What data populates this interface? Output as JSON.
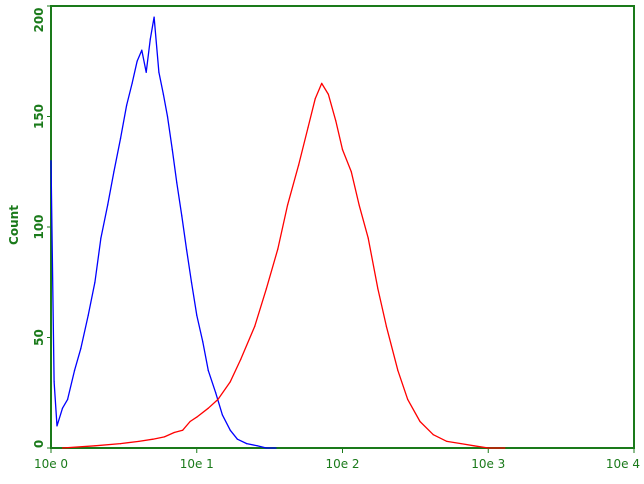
{
  "chart_data": {
    "type": "line",
    "title": "",
    "xlabel": "",
    "ylabel": "Count",
    "x_scale": "log",
    "xlim": [
      1,
      10000
    ],
    "ylim": [
      0,
      200
    ],
    "x_ticks": [
      {
        "value": 1,
        "label": "10e 0"
      },
      {
        "value": 10,
        "label": "10e 1"
      },
      {
        "value": 100,
        "label": "10e 2"
      },
      {
        "value": 1000,
        "label": "10e 3"
      },
      {
        "value": 10000,
        "label": "10e 4"
      }
    ],
    "y_ticks": [
      {
        "value": 0,
        "label": "0"
      },
      {
        "value": 50,
        "label": "50"
      },
      {
        "value": 100,
        "label": "100"
      },
      {
        "value": 150,
        "label": "150"
      },
      {
        "value": 200,
        "label": "200"
      }
    ],
    "grid": false,
    "colors": {
      "frame": "#1a7a1a",
      "blue_series": "#0000ff",
      "red_series": "#ff0000"
    },
    "series": [
      {
        "color": "#0000ff",
        "x": [
          1.0,
          1.05,
          1.1,
          1.2,
          1.3,
          1.45,
          1.6,
          1.8,
          2.0,
          2.2,
          2.45,
          2.7,
          3.0,
          3.3,
          3.6,
          3.9,
          4.2,
          4.5,
          4.8,
          5.1,
          5.5,
          5.9,
          6.3,
          6.8,
          7.3,
          7.9,
          8.5,
          9.2,
          10.0,
          11.0,
          12.0,
          13.5,
          15.0,
          17.0,
          19.0,
          22.0,
          26.0,
          30.0,
          35.0
        ],
        "y": [
          130,
          30,
          10,
          18,
          22,
          35,
          45,
          60,
          75,
          95,
          110,
          125,
          140,
          155,
          165,
          175,
          180,
          170,
          185,
          195,
          170,
          160,
          150,
          135,
          120,
          105,
          90,
          75,
          60,
          48,
          35,
          25,
          15,
          8,
          4,
          2,
          1,
          0,
          0
        ]
      },
      {
        "color": "#ff0000",
        "x": [
          1.2,
          2.0,
          3.0,
          4.0,
          5.0,
          6.0,
          7.0,
          8.0,
          9.0,
          10.0,
          12.0,
          14.0,
          17.0,
          20.0,
          25.0,
          30.0,
          36.0,
          42.0,
          50.0,
          58.0,
          65.0,
          72.0,
          80.0,
          90.0,
          100.0,
          115.0,
          130.0,
          150.0,
          175.0,
          200.0,
          240.0,
          280.0,
          340.0,
          420.0,
          520.0,
          650.0,
          800.0,
          1000.0,
          1300.0
        ],
        "y": [
          0,
          1,
          2,
          3,
          4,
          5,
          7,
          8,
          12,
          14,
          18,
          22,
          30,
          40,
          55,
          72,
          90,
          110,
          128,
          145,
          158,
          165,
          160,
          148,
          135,
          125,
          110,
          95,
          72,
          55,
          35,
          22,
          12,
          6,
          3,
          2,
          1,
          0,
          0
        ]
      }
    ]
  }
}
